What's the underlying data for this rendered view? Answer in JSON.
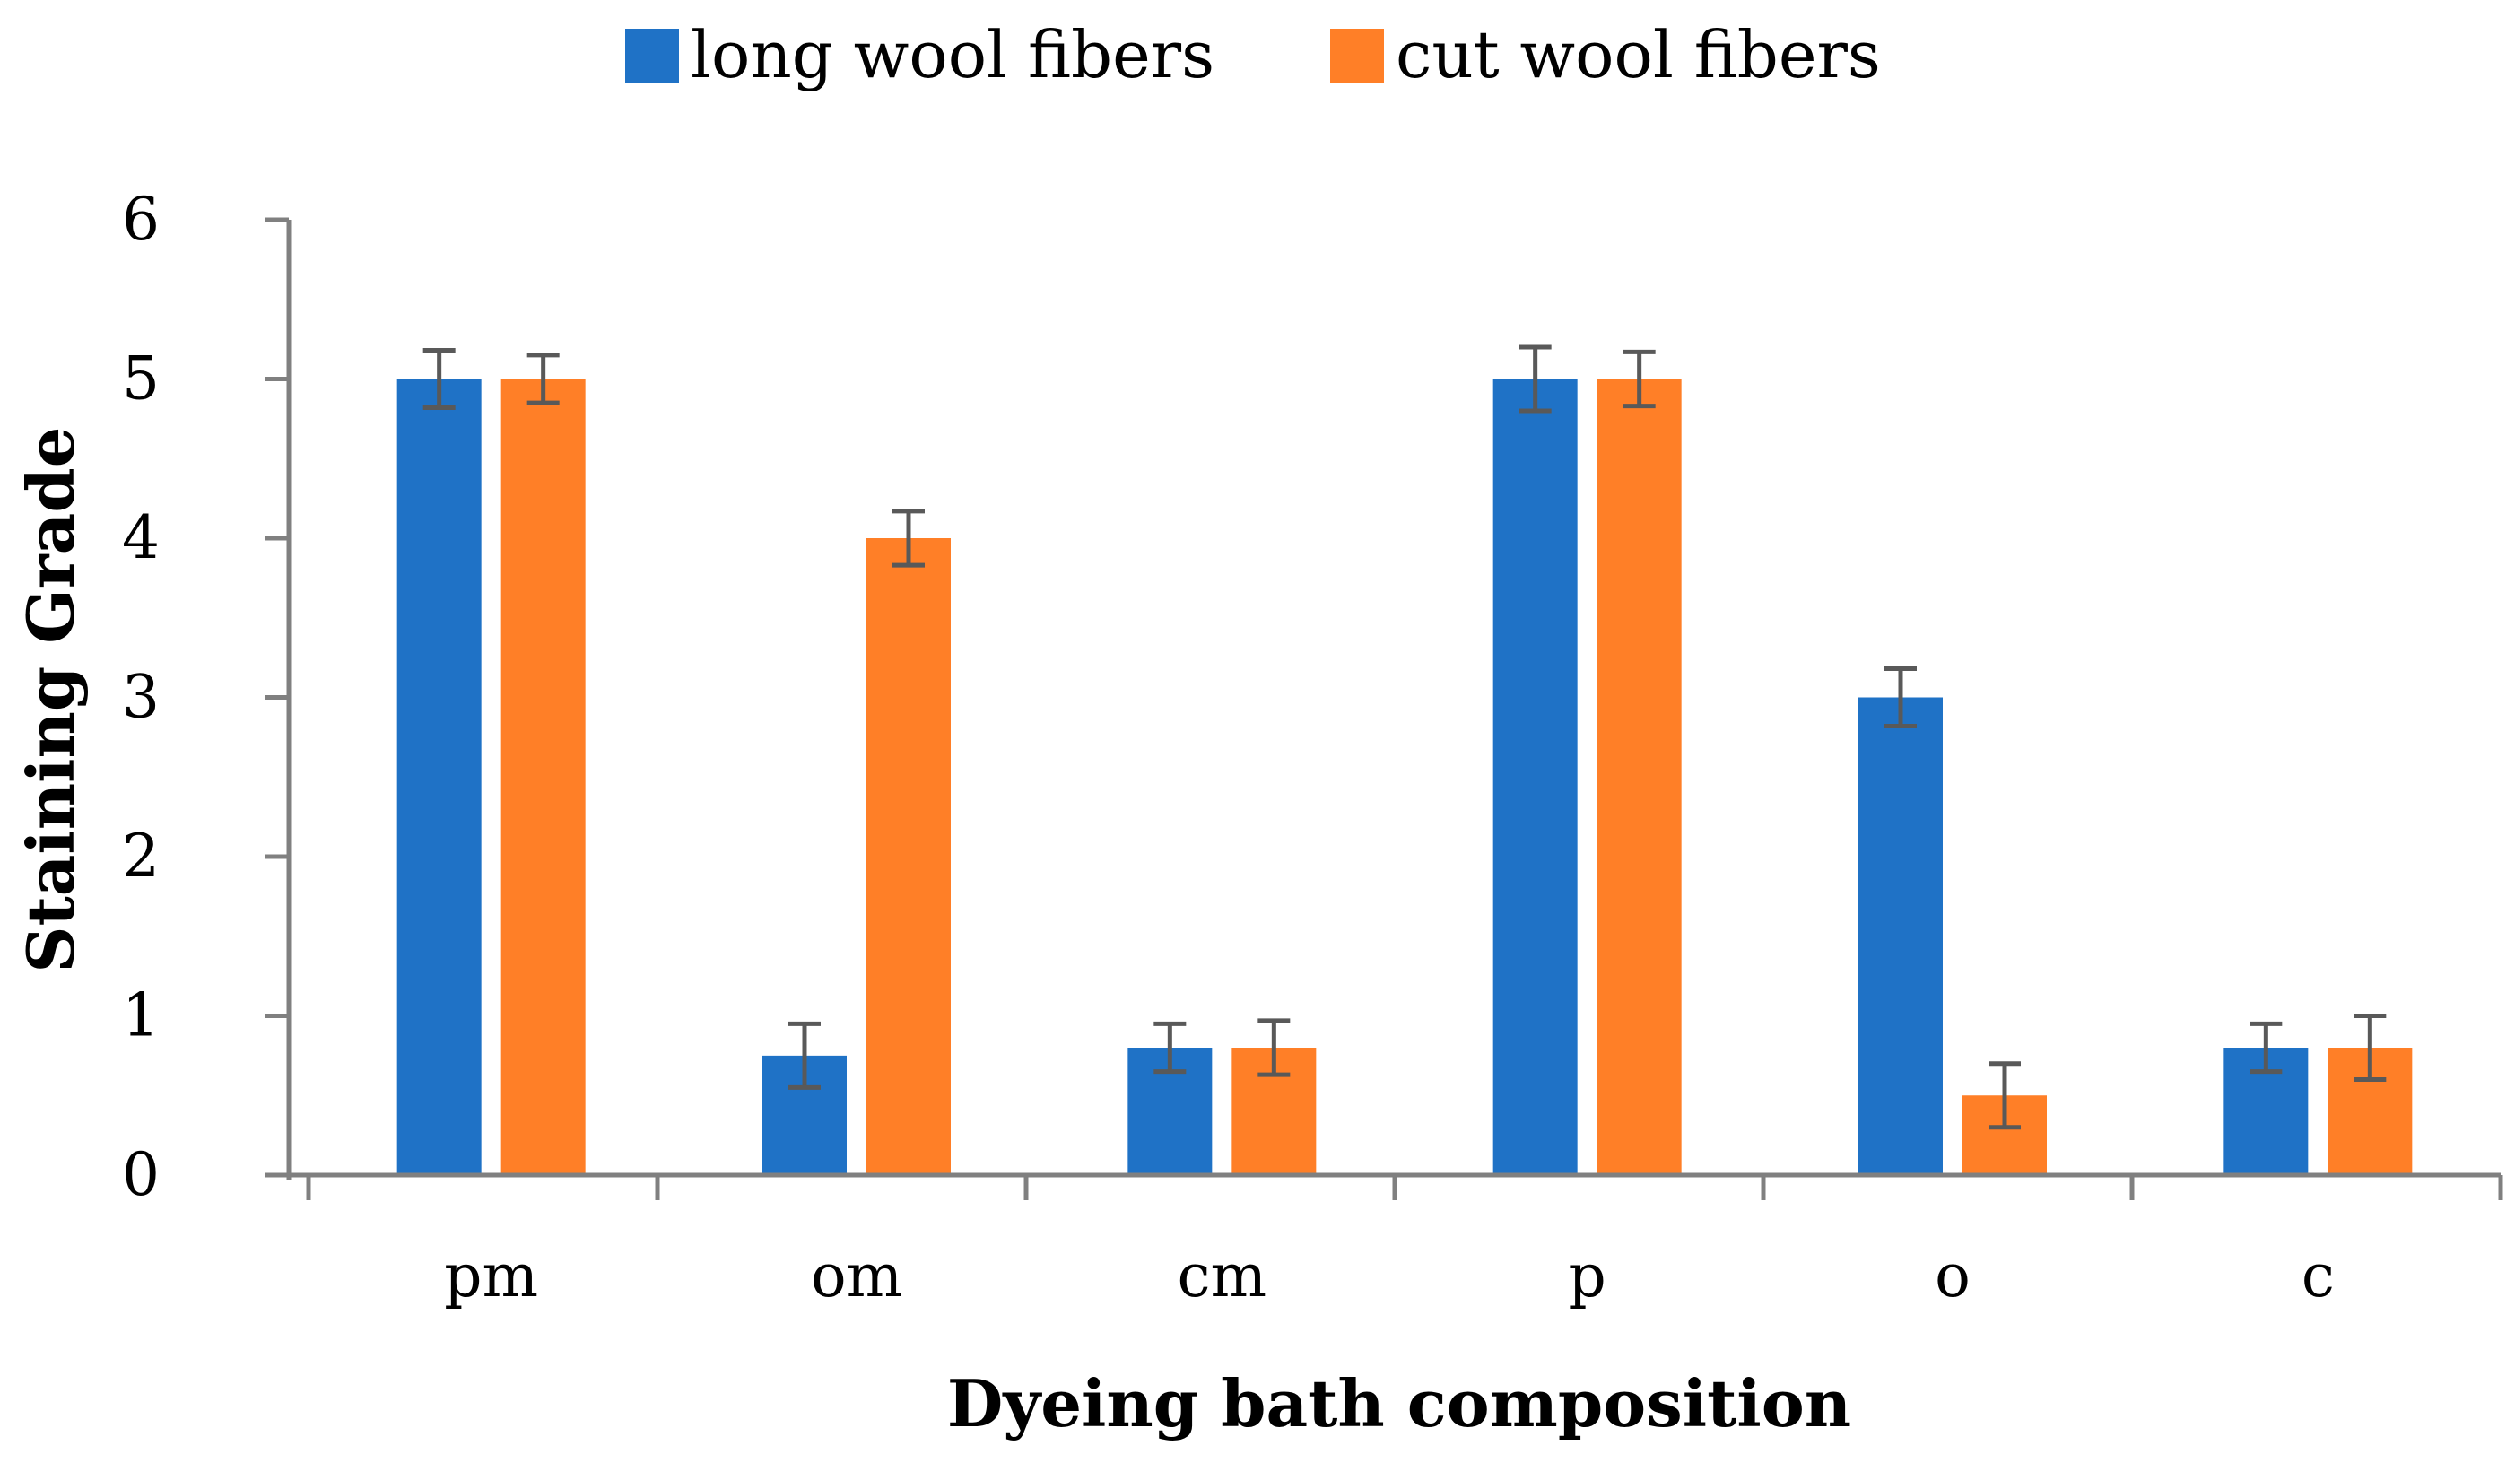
{
  "chart_data": {
    "type": "bar",
    "title": "",
    "xlabel": "Dyeing bath composition",
    "ylabel": "Staining Grade",
    "categories": [
      "pm",
      "om",
      "cm",
      "p",
      "o",
      "c"
    ],
    "ylim": [
      0,
      6
    ],
    "yticks": [
      0,
      1,
      2,
      3,
      4,
      5,
      6
    ],
    "grid": false,
    "legend_position": "top-center",
    "series": [
      {
        "name": "long wool fibers",
        "color": "#1F72C6",
        "values": [
          5,
          0.75,
          0.8,
          5,
          3,
          0.8
        ],
        "error": [
          0.18,
          0.2,
          0.15,
          0.2,
          0.18,
          0.15
        ]
      },
      {
        "name": "cut wool fibers",
        "color": "#FF7F27",
        "values": [
          5,
          4,
          0.8,
          5,
          0.5,
          0.8
        ],
        "error": [
          0.15,
          0.17,
          0.17,
          0.17,
          0.2,
          0.2
        ]
      }
    ],
    "error_bar_color": "#595959",
    "axis_color": "#808080"
  }
}
